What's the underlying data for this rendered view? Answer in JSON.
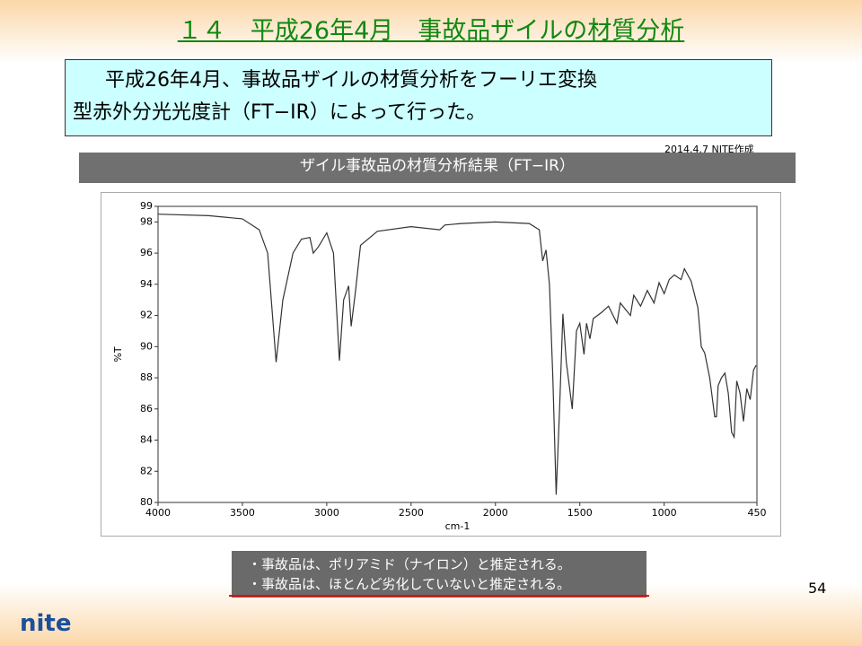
{
  "slide": {
    "title": "１４　平成26年4月　事故品ザイルの材質分析",
    "box_lines": [
      "平成26年4月、事故品ザイルの材質分析をフーリエ変換",
      "型赤外分光光度計（FT−IR）によって行った。"
    ],
    "credit": "2014.4.7 NITE作成",
    "bullets": [
      "・事故品は、ポリアミド（ナイロン）と推定される。",
      "・事故品は、ほとんど劣化していないと推定される。"
    ],
    "page_number": "54",
    "logo": "nite"
  },
  "chart_data": {
    "type": "line",
    "title": "ザイル事故品の材質分析結果（FT−IR）",
    "x_label": "cm-1",
    "y_label": "%T",
    "xlim": [
      4000,
      450
    ],
    "xticks": [
      4000,
      3500,
      3000,
      2500,
      2000,
      1500,
      1000,
      450
    ],
    "ylim": [
      80,
      99
    ],
    "yticks": [
      80,
      82,
      84,
      86,
      88,
      90,
      92,
      94,
      96,
      98,
      99
    ],
    "color": "#333333",
    "x": [
      4000,
      3700,
      3500,
      3400,
      3350,
      3300,
      3260,
      3200,
      3150,
      3100,
      3080,
      3050,
      3000,
      2960,
      2925,
      2900,
      2870,
      2855,
      2830,
      2800,
      2700,
      2500,
      2330,
      2300,
      2200,
      2000,
      1800,
      1740,
      1720,
      1700,
      1680,
      1660,
      1640,
      1620,
      1600,
      1580,
      1545,
      1520,
      1500,
      1475,
      1460,
      1440,
      1420,
      1370,
      1330,
      1280,
      1260,
      1200,
      1180,
      1140,
      1100,
      1060,
      1030,
      1000,
      970,
      940,
      900,
      880,
      840,
      800,
      780,
      760,
      730,
      700,
      690,
      680,
      660,
      640,
      620,
      600,
      585,
      570,
      550,
      530,
      510,
      490,
      470,
      455
    ],
    "values": [
      98.5,
      98.4,
      98.2,
      97.5,
      96,
      89,
      93,
      96,
      96.9,
      97,
      96,
      96.4,
      97.3,
      96,
      89.1,
      93,
      93.9,
      91.3,
      93.5,
      96.5,
      97.4,
      97.7,
      97.5,
      97.8,
      97.9,
      98,
      97.9,
      97.5,
      95.5,
      96.2,
      94,
      88,
      80.5,
      86,
      92.1,
      89,
      86,
      91,
      91.5,
      89.5,
      91.5,
      90.5,
      91.8,
      92.2,
      92.6,
      91.5,
      92.8,
      92,
      93.3,
      92.6,
      93.6,
      92.8,
      94.1,
      93.4,
      94.3,
      94.6,
      94.3,
      95,
      94.2,
      92.5,
      90,
      89.6,
      88,
      85.5,
      85.5,
      87.5,
      88,
      88.3,
      87,
      84.5,
      84.2,
      87.8,
      87,
      85.2,
      87.3,
      86.6,
      88.5,
      88.8
    ]
  }
}
